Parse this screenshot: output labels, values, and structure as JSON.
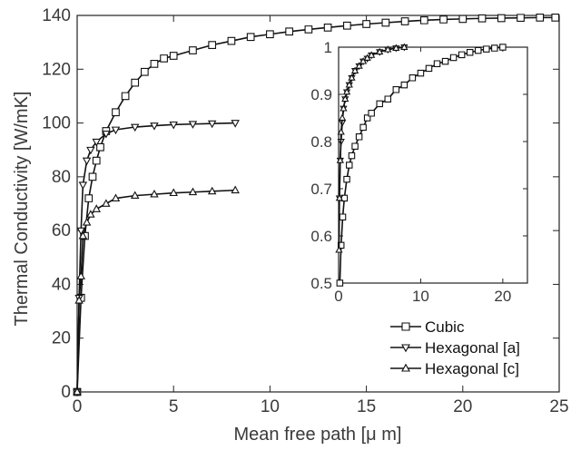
{
  "chart_data": [
    {
      "type": "line",
      "panel": "main",
      "xlabel": "Mean free path [μ m]",
      "ylabel": "Thermal Conductivity [W/mK]",
      "xlim": [
        0,
        25
      ],
      "ylim": [
        0,
        140
      ],
      "xticks": [
        0,
        5,
        10,
        15,
        20,
        25
      ],
      "yticks": [
        0,
        20,
        40,
        60,
        80,
        100,
        120,
        140
      ],
      "grid": false,
      "legend_position": "bottom-right",
      "series": [
        {
          "name": "Cubic",
          "marker": "square",
          "x": [
            0,
            0.2,
            0.4,
            0.6,
            0.8,
            1.0,
            1.2,
            1.5,
            2,
            2.5,
            3,
            3.5,
            4,
            4.5,
            5,
            6,
            7,
            8,
            9,
            10,
            11,
            12,
            13,
            14,
            15,
            16,
            17,
            18,
            19,
            20,
            21,
            22,
            23,
            24,
            24.8
          ],
          "y": [
            0,
            35,
            58,
            72,
            80,
            86,
            91,
            97,
            104,
            110,
            115,
            119,
            122,
            124,
            125,
            127,
            129,
            130.5,
            132,
            133,
            134,
            134.8,
            135.5,
            136.2,
            136.8,
            137.3,
            137.8,
            138.2,
            138.5,
            138.7,
            138.9,
            139,
            139.1,
            139.2,
            139.2
          ]
        },
        {
          "name": "Hexagonal [a]",
          "marker": "triangle-down",
          "x": [
            0,
            0.1,
            0.2,
            0.3,
            0.5,
            0.7,
            1.0,
            1.5,
            2,
            3,
            4,
            5,
            6,
            7,
            8.2
          ],
          "y": [
            0,
            35,
            60,
            77,
            86,
            90,
            93,
            96,
            97.5,
            98.5,
            99,
            99.4,
            99.6,
            99.8,
            100
          ]
        },
        {
          "name": "Hexagonal [c]",
          "marker": "triangle-up",
          "x": [
            0,
            0.1,
            0.2,
            0.3,
            0.5,
            0.7,
            1.0,
            1.5,
            2,
            3,
            4,
            5,
            6,
            7,
            8.2
          ],
          "y": [
            0,
            34,
            43,
            58,
            63,
            66,
            68,
            70,
            72,
            73,
            73.5,
            74,
            74.3,
            74.6,
            75
          ]
        }
      ]
    },
    {
      "type": "line",
      "panel": "inset",
      "xlabel": "",
      "ylabel": "",
      "xlim": [
        0,
        23
      ],
      "ylim": [
        0.5,
        1
      ],
      "xticks": [
        0,
        10,
        20
      ],
      "yticks": [
        0.5,
        0.6,
        0.7,
        0.8,
        0.9,
        1
      ],
      "grid": false,
      "series": [
        {
          "name": "Cubic",
          "marker": "square",
          "x": [
            0.15,
            0.3,
            0.5,
            0.7,
            1.0,
            1.3,
            1.6,
            2,
            2.5,
            3,
            3.5,
            4,
            5,
            6,
            7,
            8,
            9,
            10,
            11,
            12,
            13,
            14,
            15,
            16,
            17,
            18,
            19,
            20
          ],
          "y": [
            0.5,
            0.58,
            0.64,
            0.68,
            0.72,
            0.75,
            0.77,
            0.79,
            0.81,
            0.83,
            0.85,
            0.86,
            0.88,
            0.89,
            0.91,
            0.92,
            0.935,
            0.945,
            0.955,
            0.965,
            0.97,
            0.978,
            0.984,
            0.989,
            0.993,
            0.996,
            0.998,
            1.0
          ]
        },
        {
          "name": "Hexagonal [a]",
          "marker": "triangle-down",
          "x": [
            0.1,
            0.2,
            0.3,
            0.45,
            0.6,
            0.8,
            1.0,
            1.3,
            1.6,
            2,
            2.5,
            3,
            3.5,
            4,
            5,
            6,
            7,
            8
          ],
          "y": [
            0.68,
            0.76,
            0.8,
            0.84,
            0.87,
            0.89,
            0.905,
            0.92,
            0.935,
            0.95,
            0.96,
            0.97,
            0.976,
            0.983,
            0.99,
            0.995,
            0.998,
            1.0
          ]
        },
        {
          "name": "Hexagonal [c]",
          "marker": "triangle-up",
          "x": [
            0.05,
            0.1,
            0.2,
            0.3,
            0.45,
            0.6,
            0.8,
            1.0,
            1.3,
            1.6,
            2,
            2.5,
            3,
            3.5,
            4,
            5,
            6,
            7,
            8
          ],
          "y": [
            0.57,
            0.68,
            0.76,
            0.82,
            0.85,
            0.87,
            0.89,
            0.905,
            0.92,
            0.935,
            0.95,
            0.96,
            0.97,
            0.977,
            0.983,
            0.99,
            0.995,
            0.998,
            1.0
          ]
        }
      ]
    }
  ]
}
